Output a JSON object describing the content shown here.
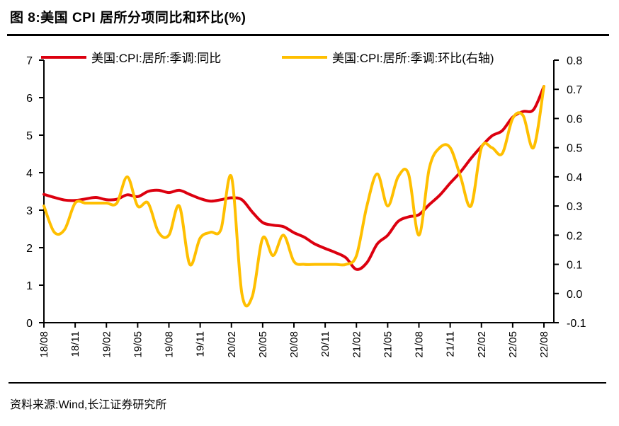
{
  "title": "图 8:美国 CPI 居所分项同比和环比(%)",
  "source": "资料来源:Wind,长江证券研究所",
  "chart_data": {
    "type": "line",
    "title": "美国 CPI 居所分项同比和环比(%)",
    "grid": false,
    "legend_position": "top",
    "x": [
      "18/08",
      "18/09",
      "18/10",
      "18/11",
      "18/12",
      "19/01",
      "19/02",
      "19/03",
      "19/04",
      "19/05",
      "19/06",
      "19/07",
      "19/08",
      "19/09",
      "19/10",
      "19/11",
      "19/12",
      "20/01",
      "20/02",
      "20/03",
      "20/04",
      "20/05",
      "20/06",
      "20/07",
      "20/08",
      "20/09",
      "20/10",
      "20/11",
      "20/12",
      "21/01",
      "21/02",
      "21/03",
      "21/04",
      "21/05",
      "21/06",
      "21/07",
      "21/08",
      "21/09",
      "21/10",
      "21/11",
      "21/12",
      "22/01",
      "22/02",
      "22/03",
      "22/04",
      "22/05",
      "22/06",
      "22/07",
      "22/08"
    ],
    "x_tick_every": 3,
    "series": [
      {
        "name": "美国:CPI:居所:季调:同比",
        "axis": "left",
        "color": "#DC000F",
        "values": [
          3.42,
          3.34,
          3.27,
          3.26,
          3.3,
          3.34,
          3.28,
          3.29,
          3.41,
          3.36,
          3.5,
          3.53,
          3.47,
          3.53,
          3.42,
          3.31,
          3.24,
          3.28,
          3.33,
          3.28,
          2.95,
          2.67,
          2.6,
          2.56,
          2.4,
          2.28,
          2.1,
          1.98,
          1.87,
          1.73,
          1.42,
          1.6,
          2.1,
          2.33,
          2.7,
          2.82,
          2.88,
          3.15,
          3.4,
          3.72,
          4.02,
          4.38,
          4.7,
          4.98,
          5.12,
          5.48,
          5.63,
          5.68,
          6.3
        ]
      },
      {
        "name": "美国:CPI:居所:季调:环比(右轴)",
        "axis": "right",
        "color": "#FFBF00",
        "values": [
          0.3,
          0.21,
          0.22,
          0.31,
          0.31,
          0.31,
          0.31,
          0.31,
          0.4,
          0.3,
          0.31,
          0.21,
          0.2,
          0.3,
          0.1,
          0.19,
          0.21,
          0.22,
          0.4,
          0.0,
          -0.01,
          0.19,
          0.13,
          0.2,
          0.11,
          0.1,
          0.1,
          0.1,
          0.1,
          0.1,
          0.13,
          0.3,
          0.41,
          0.3,
          0.4,
          0.41,
          0.2,
          0.43,
          0.5,
          0.5,
          0.4,
          0.3,
          0.5,
          0.5,
          0.48,
          0.6,
          0.61,
          0.5,
          0.71
        ]
      }
    ],
    "left_axis": {
      "min": 0,
      "max": 7,
      "ticks": [
        0,
        1,
        2,
        3,
        4,
        5,
        6,
        7
      ],
      "labels": [
        "0",
        "1",
        "2",
        "3",
        "4",
        "5",
        "6",
        "7"
      ]
    },
    "right_axis": {
      "min": -0.1,
      "max": 0.8,
      "ticks": [
        -0.1,
        0.0,
        0.1,
        0.2,
        0.3,
        0.4,
        0.5,
        0.6,
        0.7,
        0.8
      ],
      "labels": [
        "-0.1",
        "0.0",
        "0.1",
        "0.2",
        "0.3",
        "0.4",
        "0.5",
        "0.6",
        "0.7",
        "0.8"
      ]
    }
  }
}
